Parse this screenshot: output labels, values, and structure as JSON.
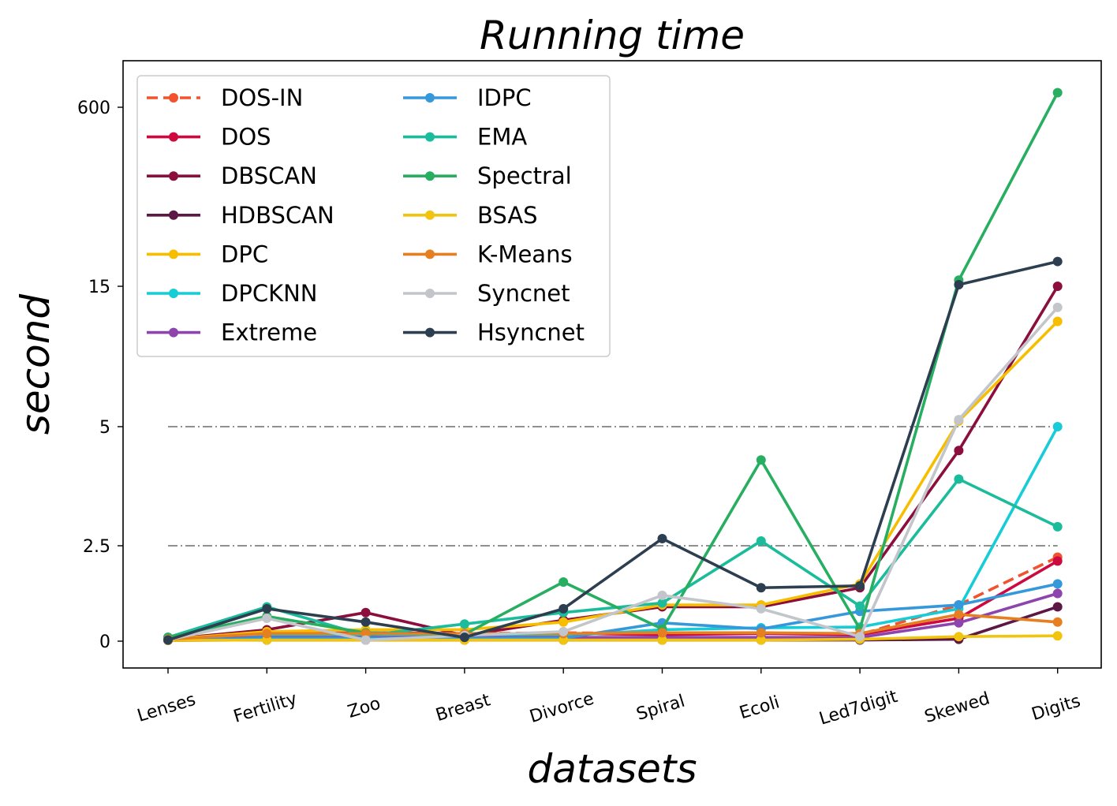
{
  "chart_data": {
    "type": "line",
    "title": "Running time",
    "xlabel": "datasets",
    "ylabel": "second",
    "categories": [
      "Lenses",
      "Fertility",
      "Zoo",
      "Breast",
      "Divorce",
      "Spiral",
      "Ecoli",
      "Led7digit",
      "Skewed",
      "Digits"
    ],
    "yticks": [
      {
        "label": "0",
        "value": 0
      },
      {
        "label": "2.5",
        "value": 2.5
      },
      {
        "label": "5",
        "value": 5
      },
      {
        "label": "15",
        "value": 15
      },
      {
        "label": "600",
        "value": 600
      }
    ],
    "ylim": [
      -0.5,
      1500
    ],
    "reference_lines": [
      2.5,
      5
    ],
    "legend_position": "upper-left",
    "legend_columns": 2,
    "series": [
      {
        "name": "DOS-IN",
        "color": "#f0532e",
        "dashed": true,
        "values": [
          0.05,
          0.14,
          0.22,
          0.2,
          0.22,
          0.2,
          0.22,
          0.17,
          0.95,
          2.2
        ]
      },
      {
        "name": "DOS",
        "color": "#cc0a3f",
        "dashed": false,
        "values": [
          0.05,
          0.2,
          0.22,
          0.2,
          0.2,
          0.17,
          0.2,
          0.17,
          0.6,
          2.1
        ]
      },
      {
        "name": "DBSCAN",
        "color": "#8c0e3c",
        "dashed": false,
        "values": [
          0.05,
          0.3,
          0.75,
          0.15,
          0.55,
          0.9,
          0.9,
          1.4,
          4.5,
          15
        ]
      },
      {
        "name": "HDBSCAN",
        "color": "#5c1744",
        "dashed": false,
        "values": [
          0.02,
          0.03,
          0.03,
          0.03,
          0.03,
          0.03,
          0.03,
          0.03,
          0.05,
          0.9
        ]
      },
      {
        "name": "DPC",
        "color": "#f7be00",
        "dashed": false,
        "values": [
          0.05,
          0.25,
          0.3,
          0.3,
          0.5,
          0.95,
          0.95,
          1.5,
          5.4,
          12.5
        ]
      },
      {
        "name": "DPCKNN",
        "color": "#16ccd6",
        "dashed": false,
        "values": [
          0.03,
          0.14,
          0.14,
          0.14,
          0.14,
          0.3,
          0.35,
          0.37,
          0.85,
          5.0
        ]
      },
      {
        "name": "Extreme",
        "color": "#8e44ad",
        "dashed": false,
        "values": [
          0.03,
          0.1,
          0.1,
          0.1,
          0.1,
          0.1,
          0.1,
          0.1,
          0.48,
          1.25
        ]
      },
      {
        "name": "IDPC",
        "color": "#3498db",
        "dashed": false,
        "values": [
          0.03,
          0.08,
          0.08,
          0.08,
          0.08,
          0.48,
          0.32,
          0.78,
          0.95,
          1.5
        ]
      },
      {
        "name": "EMA",
        "color": "#1abc9c",
        "dashed": false,
        "values": [
          0.1,
          0.9,
          0.15,
          0.45,
          0.75,
          1.0,
          2.6,
          0.92,
          3.9,
          2.9
        ]
      },
      {
        "name": "Spectral",
        "color": "#27ae60",
        "dashed": false,
        "values": [
          0.1,
          0.65,
          0.22,
          0.18,
          1.55,
          0.32,
          4.3,
          0.32,
          17,
          800
        ]
      },
      {
        "name": "BSAS",
        "color": "#f1c40f",
        "dashed": false,
        "values": [
          0.02,
          0.03,
          0.03,
          0.03,
          0.03,
          0.03,
          0.03,
          0.05,
          0.12,
          0.14
        ]
      },
      {
        "name": "K-Means",
        "color": "#e67e22",
        "dashed": false,
        "values": [
          0.05,
          0.2,
          0.2,
          0.2,
          0.2,
          0.22,
          0.22,
          0.2,
          0.7,
          0.5
        ]
      },
      {
        "name": "Syncnet",
        "color": "#c2c6cb",
        "dashed": false,
        "values": [
          0.03,
          0.6,
          0.03,
          0.15,
          0.25,
          1.2,
          0.85,
          0.12,
          5.5,
          13.5
        ]
      },
      {
        "name": "Hsyncnet",
        "color": "#2c3e50",
        "dashed": false,
        "values": [
          0.03,
          0.85,
          0.5,
          0.1,
          0.85,
          2.65,
          1.4,
          1.45,
          15.5,
          25
        ]
      }
    ]
  }
}
